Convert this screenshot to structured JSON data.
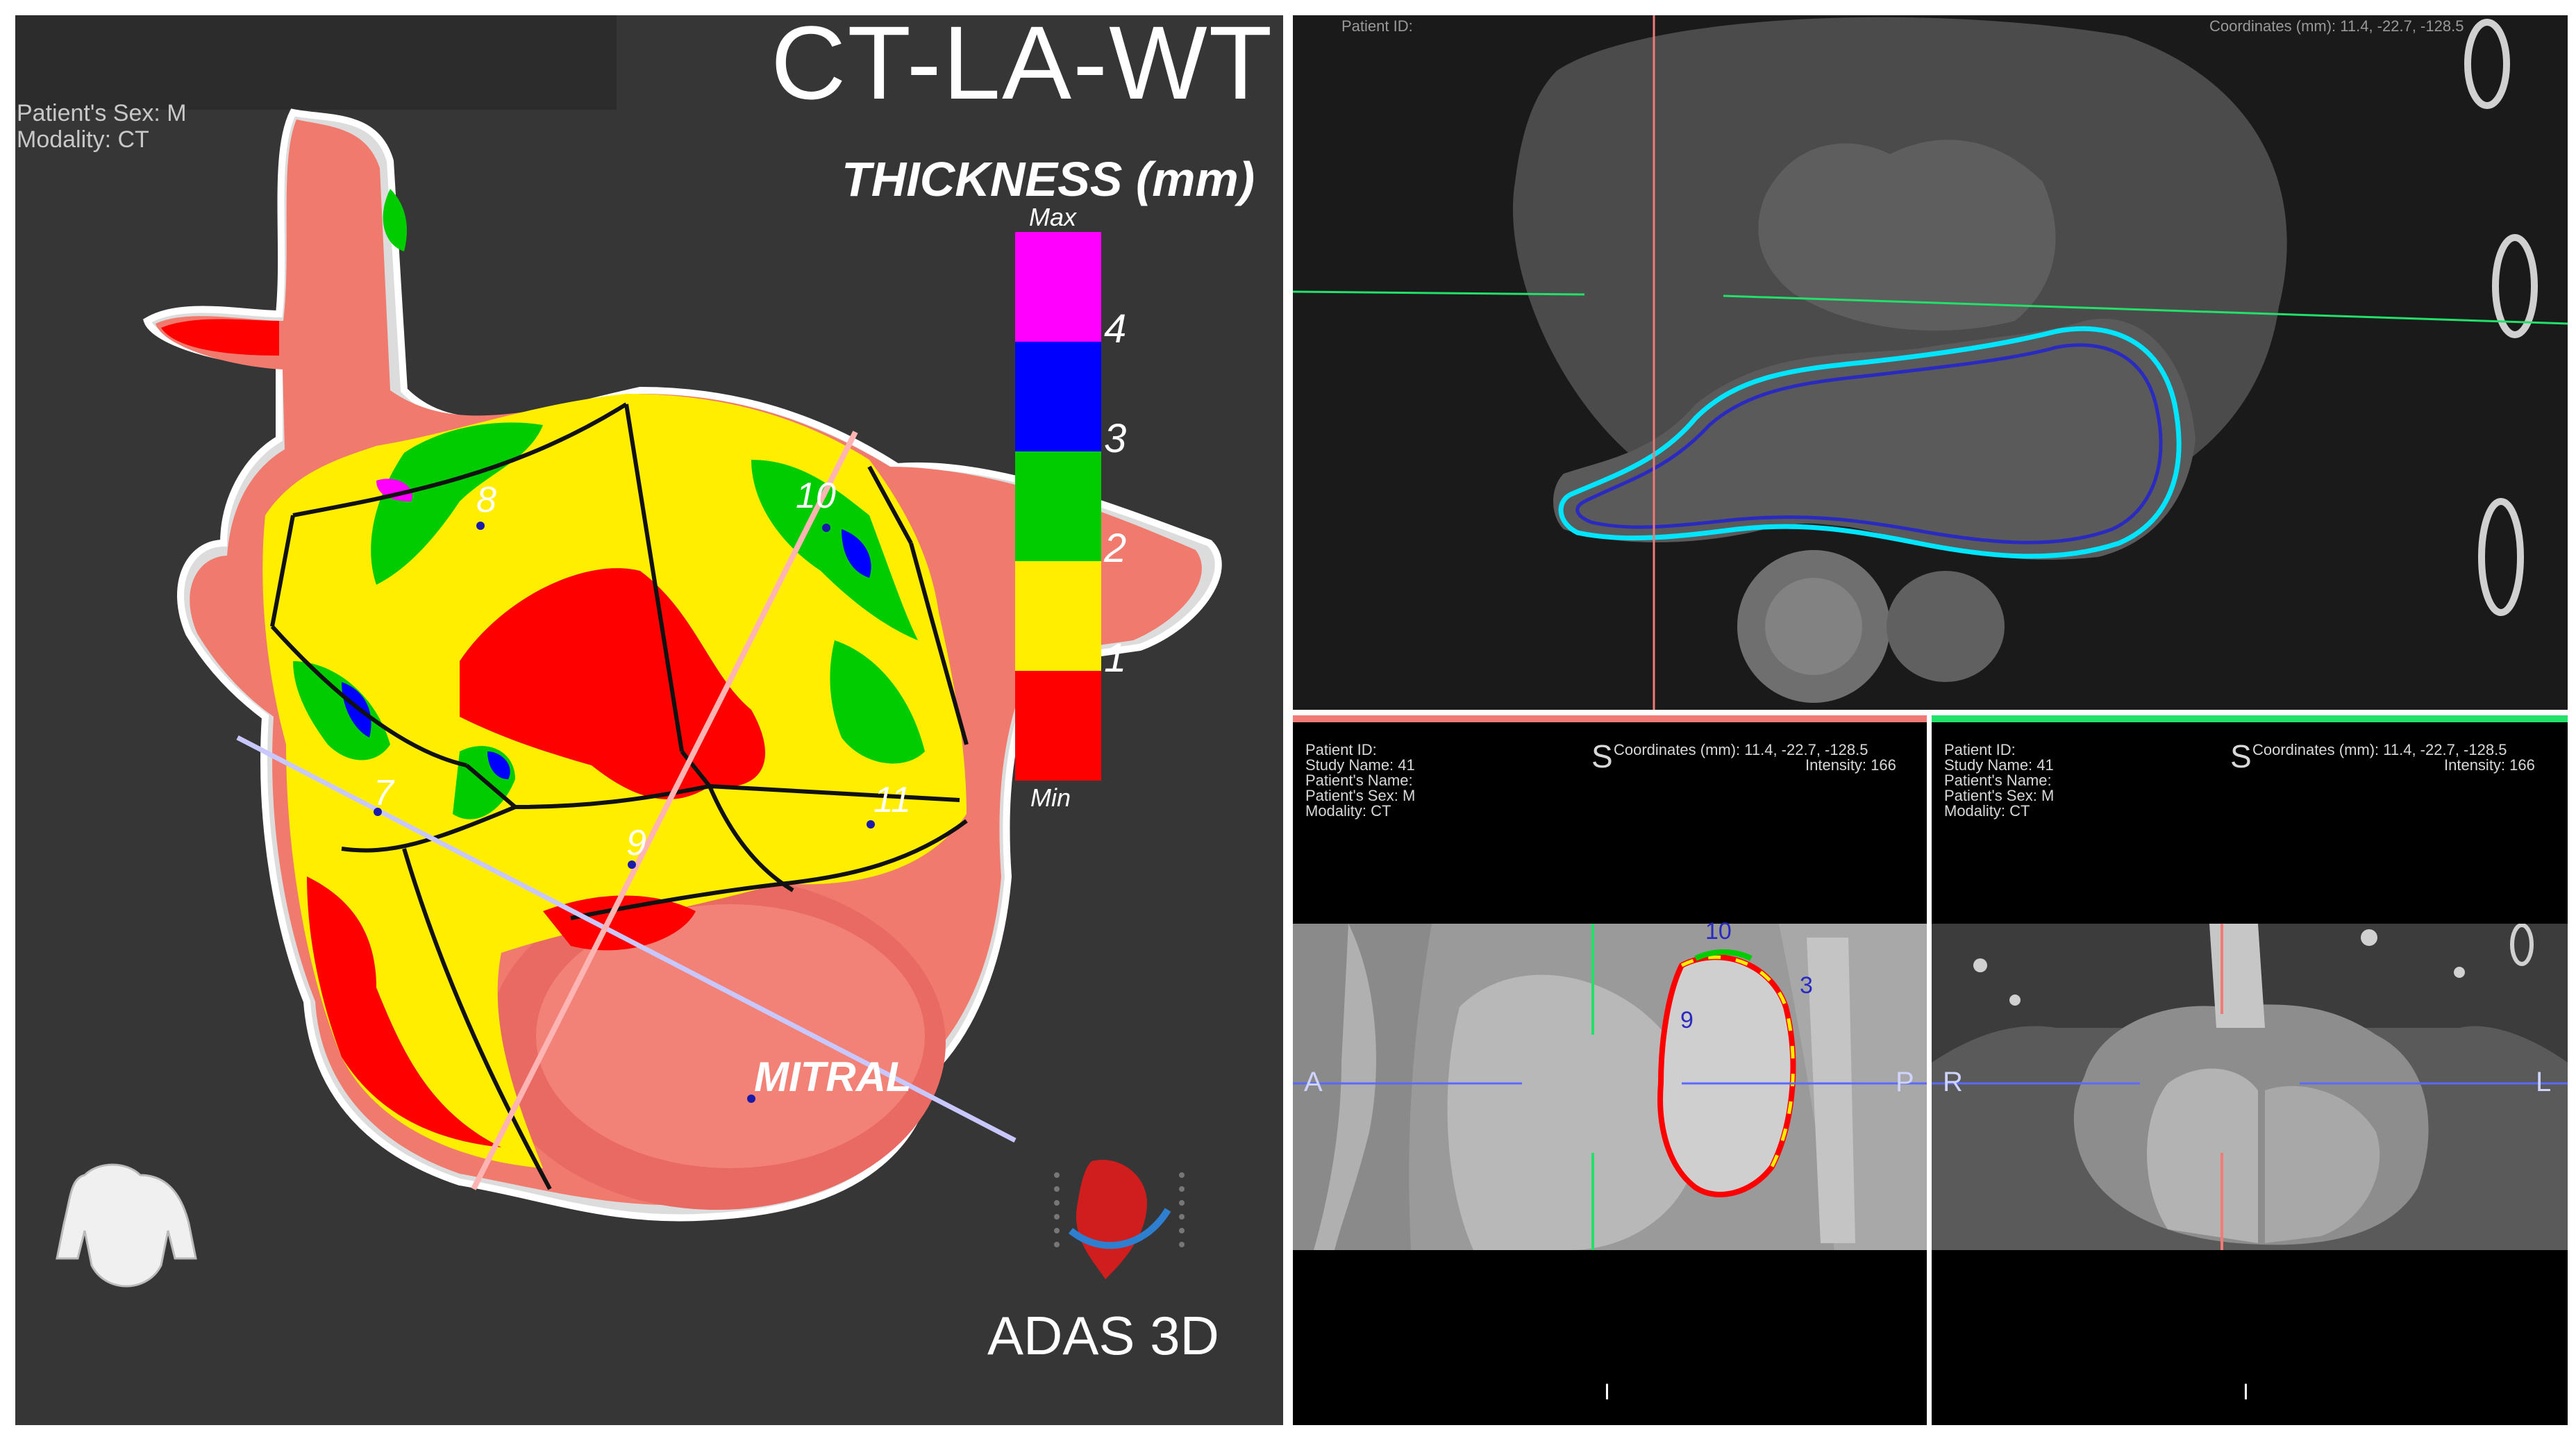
{
  "left_panel": {
    "title": "CT-LA-WT",
    "patient_sex": "Patient's Sex: M",
    "modality": "Modality: CT",
    "scale": {
      "title": "THICKNESS (mm)",
      "max_label": "Max",
      "min_label": "Min",
      "ticks": [
        "4",
        "3",
        "2",
        "1"
      ],
      "colors": [
        "#ff00ff",
        "#0000ff",
        "#00cc00",
        "#ffee00",
        "#ff0000"
      ]
    },
    "segment_labels": [
      "8",
      "10",
      "7",
      "9",
      "11"
    ],
    "mitral_label": "MITRAL",
    "brand": "ADAS 3D"
  },
  "axial_view": {
    "header": "Patient ID:",
    "header_right": "Coordinates (mm): 11.4, -22.7, -128.5"
  },
  "sagittal_view": {
    "bar_color": "#f07a76",
    "info": [
      "Patient ID:",
      "Study Name: 41",
      "Patient's Name:",
      "Patient's Sex: M",
      "Modality: CT"
    ],
    "s_marker": "S",
    "coords": "Coordinates (mm): 11.4, -22.7, -128.5",
    "intensity": "Intensity: 166",
    "labels": [
      "10",
      "3",
      "9"
    ],
    "left_orient": "A",
    "right_orient": "P",
    "bottom_orient": "I"
  },
  "coronal_view": {
    "bar_color": "#22e06a",
    "info": [
      "Patient ID:",
      "Study Name: 41",
      "Patient's Name:",
      "Patient's Sex: M",
      "Modality: CT"
    ],
    "s_marker": "S",
    "coords": "Coordinates (mm): 11.4, -22.7, -128.5",
    "intensity": "Intensity: 166",
    "left_orient": "R",
    "right_orient": "L",
    "bottom_orient": "I"
  }
}
